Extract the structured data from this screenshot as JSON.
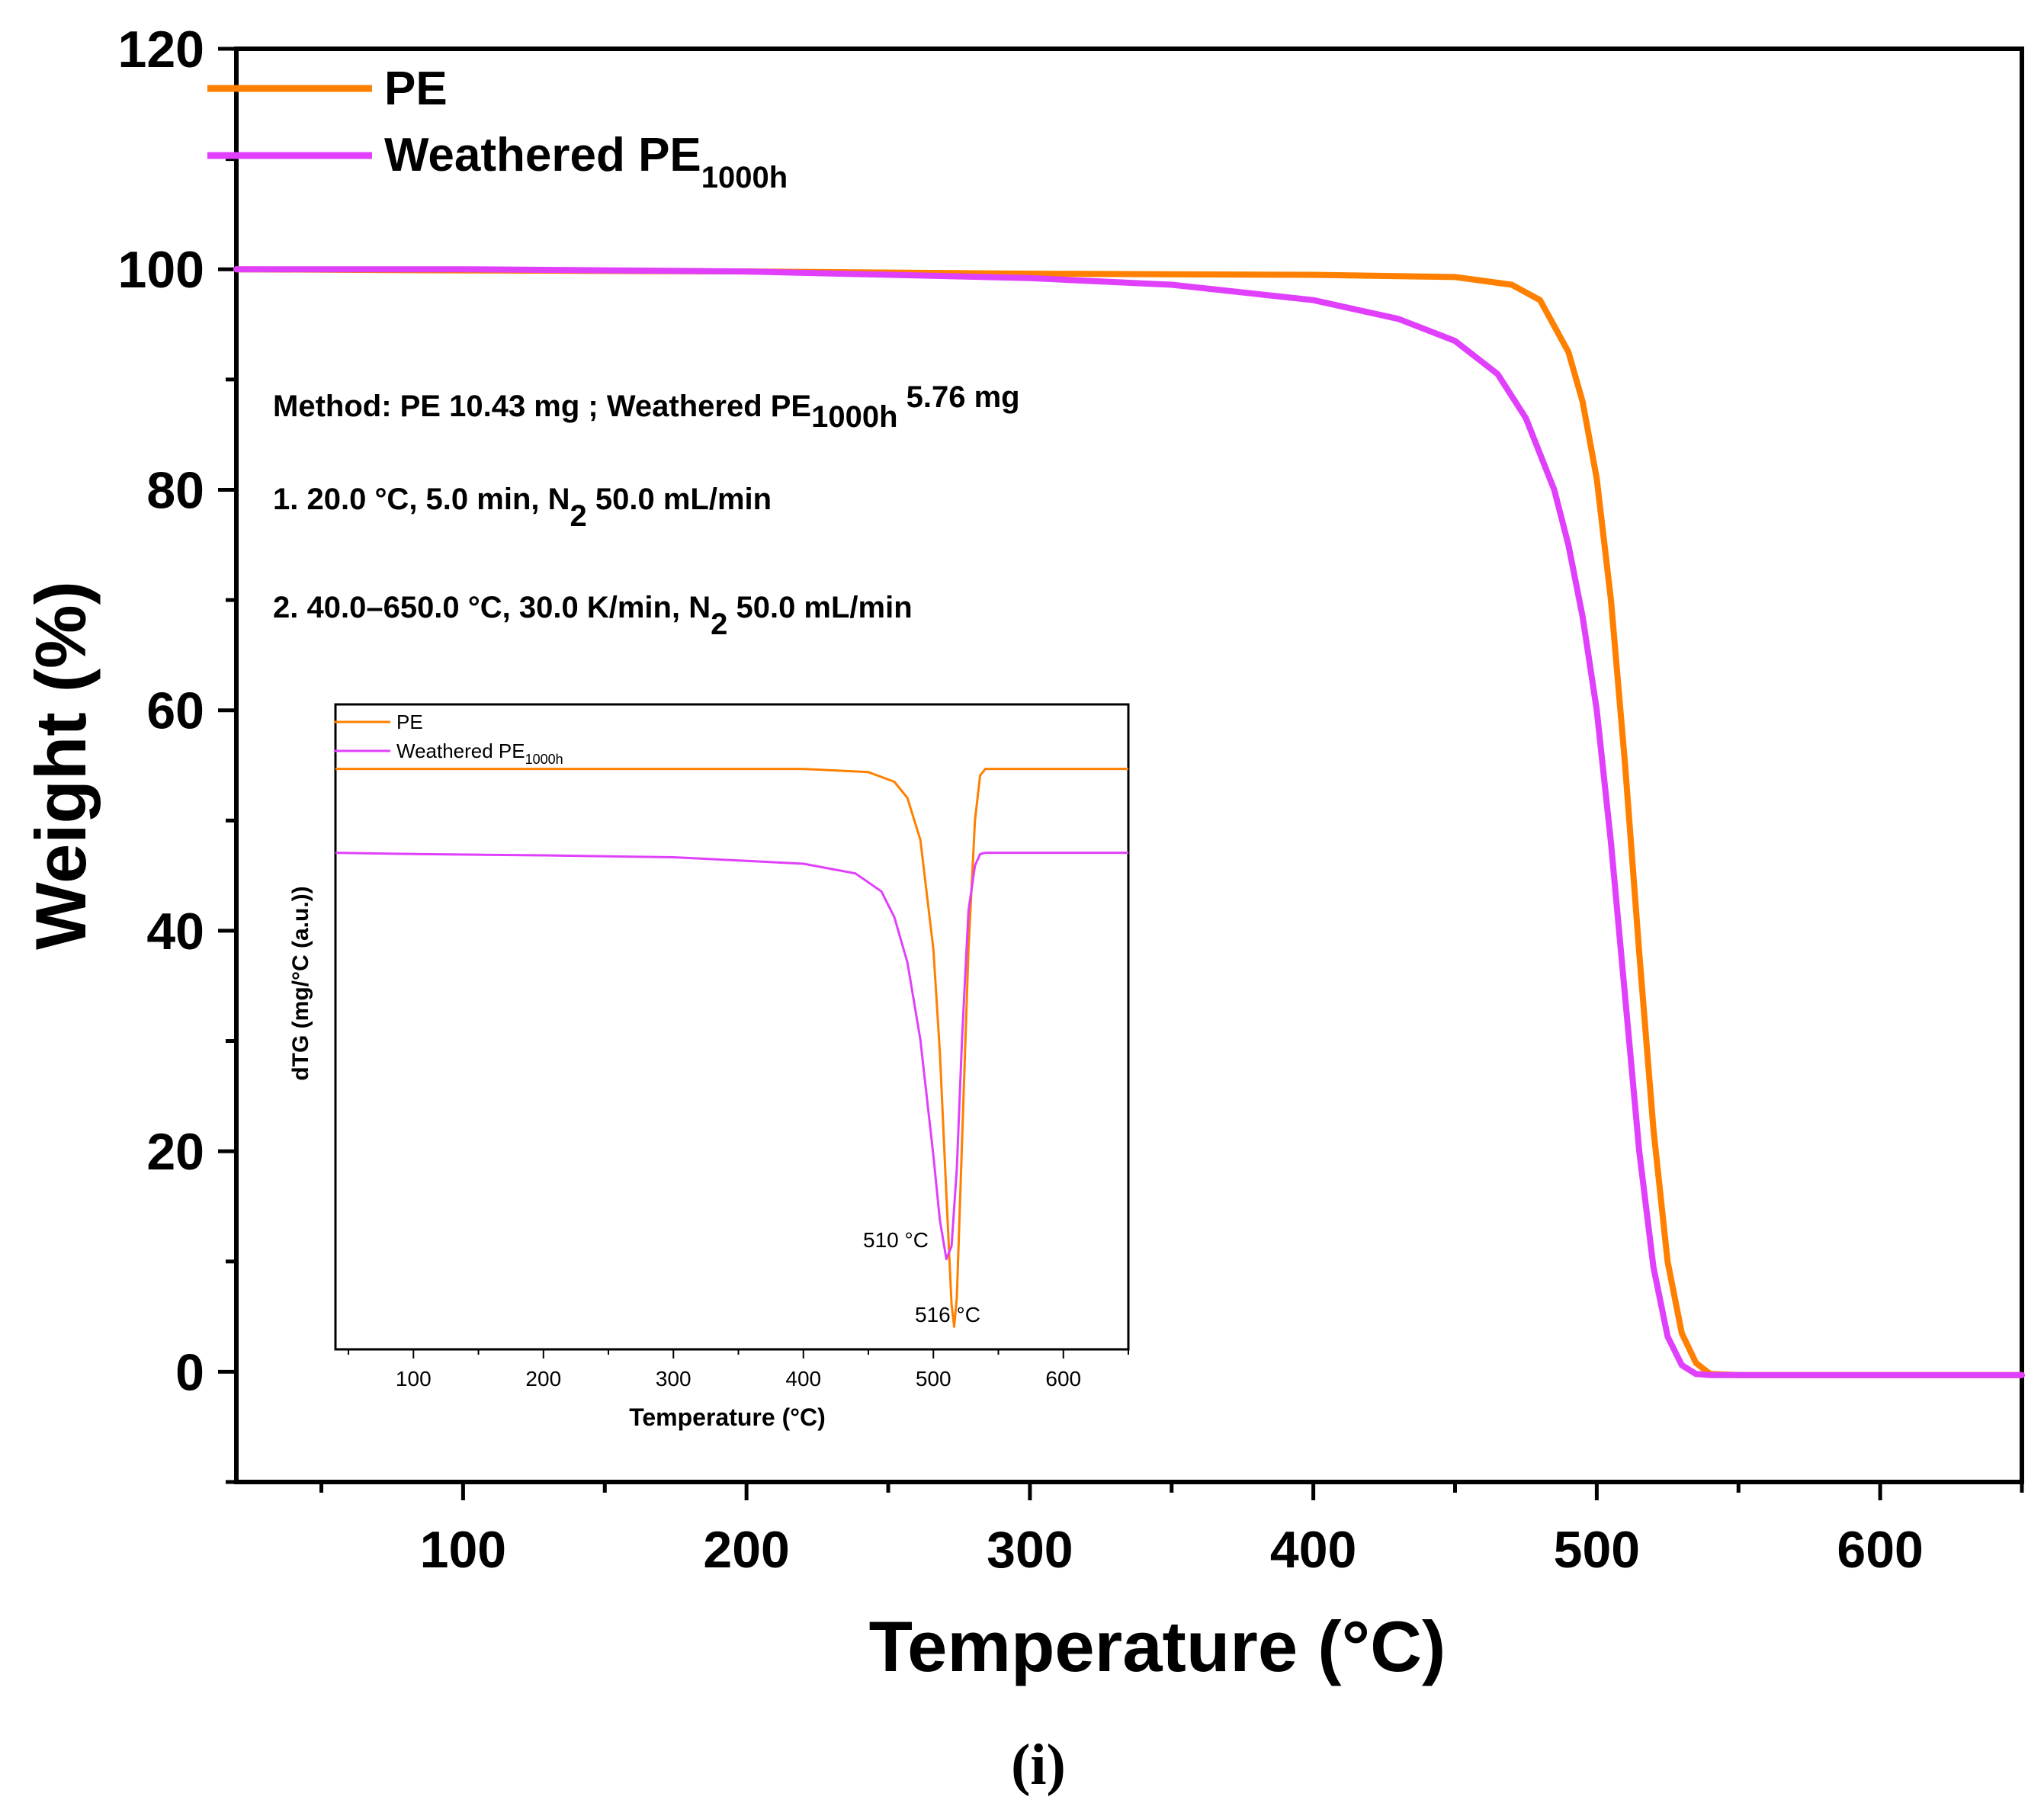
{
  "chart_data": [
    {
      "type": "line",
      "title": "",
      "xlabel": "Temperature (°C)",
      "ylabel": "Weight (%)",
      "xlim": [
        20,
        650
      ],
      "ylim": [
        -10,
        120
      ],
      "x_ticks": [
        100,
        200,
        300,
        400,
        500,
        600
      ],
      "y_ticks": [
        0,
        20,
        40,
        60,
        80,
        100,
        120
      ],
      "legend": {
        "position": "top-left"
      },
      "series": [
        {
          "name": "PE",
          "name_sub": "",
          "color": "#FF8000",
          "x": [
            20,
            100,
            200,
            300,
            400,
            450,
            470,
            480,
            490,
            495,
            500,
            505,
            510,
            515,
            520,
            525,
            530,
            535,
            540,
            550,
            650
          ],
          "y": [
            100,
            99.9,
            99.8,
            99.6,
            99.5,
            99.3,
            98.6,
            97.2,
            92.5,
            88,
            81,
            70,
            55,
            38,
            22,
            10,
            3.5,
            0.8,
            -0.2,
            -0.3,
            -0.3
          ]
        },
        {
          "name": "Weathered PE",
          "name_sub": "1000h",
          "color": "#E040FB",
          "x": [
            20,
            100,
            200,
            300,
            350,
            400,
            430,
            450,
            465,
            475,
            485,
            490,
            495,
            500,
            505,
            510,
            515,
            520,
            525,
            530,
            535,
            540,
            650
          ],
          "y": [
            100,
            100,
            99.8,
            99.2,
            98.6,
            97.2,
            95.5,
            93.5,
            90.5,
            86.5,
            80,
            75,
            68.5,
            60,
            48,
            34,
            20,
            9.5,
            3.2,
            0.6,
            -0.2,
            -0.3,
            -0.3
          ]
        }
      ],
      "annotation": {
        "method_prefix": "Method: PE 10.43 mg ; Weathered PE",
        "method_sub": "1000h",
        "method_suffix": " 5.76 mg",
        "step1_prefix": "1. 20.0 °C, 5.0 min, N",
        "step1_sub": "2",
        "step1_suffix": " 50.0 mL/min",
        "step2_prefix": "2. 40.0–650.0 °C, 30.0 K/min, N",
        "step2_sub": "2",
        "step2_suffix": " 50.0 mL/min"
      },
      "panel_label": "(i)"
    },
    {
      "type": "line",
      "title": "",
      "xlabel": "Temperature (°C)",
      "ylabel": "dTG (mg/°C (a.u.))",
      "xlim": [
        40,
        650
      ],
      "x_ticks": [
        100,
        200,
        300,
        400,
        500,
        600
      ],
      "ylim": [
        0,
        100
      ],
      "y_ticks_shown": false,
      "legend": {
        "position": "top-left"
      },
      "series": [
        {
          "name": "PE",
          "name_sub": "",
          "color": "#FF8000",
          "x": [
            40,
            400,
            450,
            470,
            480,
            490,
            500,
            505,
            510,
            514,
            516,
            518,
            522,
            527,
            532,
            536,
            540,
            650
          ],
          "y": [
            90,
            90,
            89.5,
            88,
            85.5,
            79,
            62,
            46,
            24,
            7,
            3.5,
            8,
            32,
            62,
            82,
            89,
            90,
            90
          ]
        },
        {
          "name": "Weathered PE",
          "name_sub": "1000h",
          "color": "#E040FB",
          "x": [
            40,
            100,
            200,
            300,
            400,
            440,
            460,
            470,
            480,
            490,
            500,
            505,
            510,
            514,
            518,
            522,
            527,
            532,
            536,
            540,
            650
          ],
          "y": [
            77,
            76.8,
            76.6,
            76.3,
            75.3,
            73.8,
            71,
            67,
            60,
            48,
            30,
            20,
            14,
            16,
            28,
            48,
            68,
            75,
            76.8,
            77,
            77
          ]
        }
      ],
      "annotations": [
        {
          "text": "510 °C",
          "x": 510,
          "y": 14
        },
        {
          "text": "516 °C",
          "x": 516,
          "y": 3.5
        }
      ]
    }
  ]
}
